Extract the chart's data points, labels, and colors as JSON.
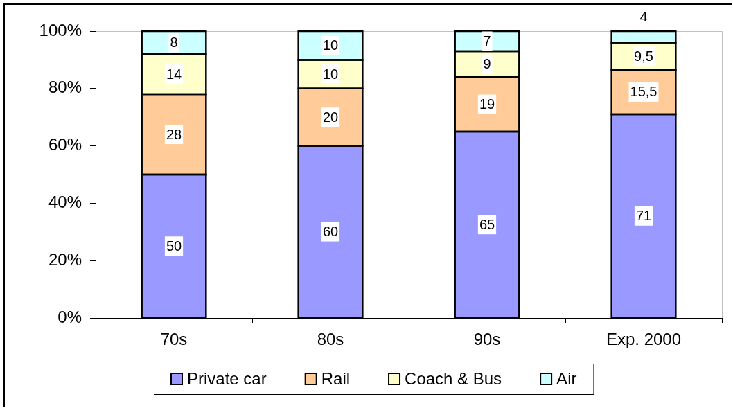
{
  "chart_data": {
    "type": "bar",
    "stacked": true,
    "categories": [
      "70s",
      "80s",
      "90s",
      "Exp. 2000"
    ],
    "series": [
      {
        "name": "Private car",
        "color": "#9999ff",
        "values": [
          50,
          60,
          65,
          71
        ],
        "value_labels": [
          "50",
          "60",
          "65",
          "71"
        ]
      },
      {
        "name": "Rail",
        "color": "#ffcc99",
        "values": [
          28,
          20,
          19,
          15.5
        ],
        "value_labels": [
          "28",
          "20",
          "19",
          "15,5"
        ]
      },
      {
        "name": "Coach & Bus",
        "color": "#ffffcc",
        "values": [
          14,
          10,
          9,
          9.5
        ],
        "value_labels": [
          "14",
          "10",
          "9",
          "9,5"
        ]
      },
      {
        "name": "Air",
        "color": "#ccffff",
        "values": [
          8,
          10,
          7,
          4
        ],
        "value_labels": [
          "8",
          "10",
          "7",
          "4"
        ]
      }
    ],
    "ylim": [
      0,
      100
    ],
    "yticks": [
      {
        "value": 0,
        "label": "0%"
      },
      {
        "value": 20,
        "label": "20%"
      },
      {
        "value": 40,
        "label": "40%"
      },
      {
        "value": 60,
        "label": "60%"
      },
      {
        "value": 80,
        "label": "80%"
      },
      {
        "value": 100,
        "label": "100%"
      }
    ],
    "grid": false,
    "legend": "bottom"
  }
}
